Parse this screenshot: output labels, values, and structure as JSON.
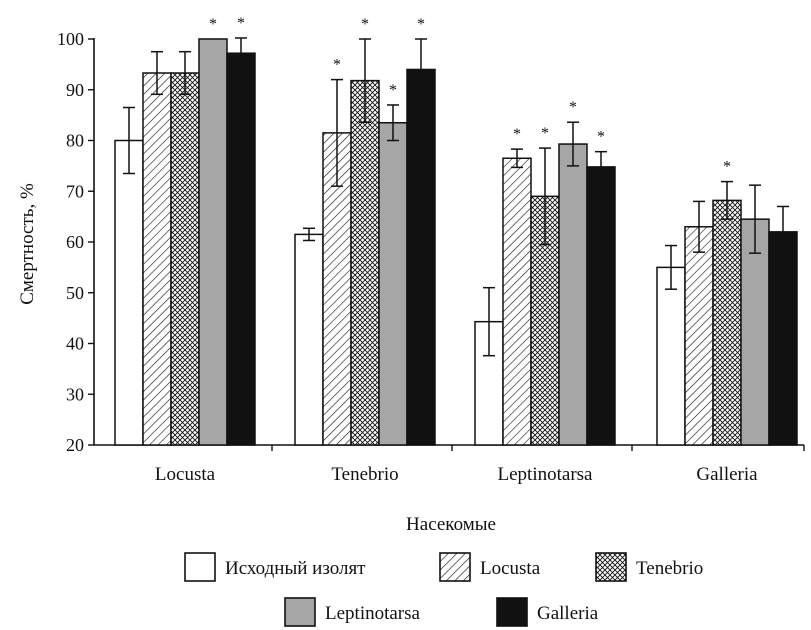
{
  "chart_data": {
    "type": "bar",
    "xlabel": "Насекомые",
    "ylabel": "Смертность, %",
    "ylim": [
      20,
      100
    ],
    "yticks": [
      "20",
      "30",
      "40",
      "50",
      "60",
      "70",
      "80",
      "90",
      "100"
    ],
    "categories": [
      "Locusta",
      "Tenebrio",
      "Leptinotarsa",
      "Galleria"
    ],
    "grid": false,
    "legend_position": "bottom",
    "significance_marker": "*",
    "series": [
      {
        "name": "Исходный изолят",
        "pattern": "white",
        "values": [
          80,
          61.5,
          44.3,
          55
        ],
        "errors": [
          6.5,
          1.2,
          6.7,
          4.3
        ],
        "significant": [
          false,
          false,
          false,
          false
        ]
      },
      {
        "name": "Locusta",
        "pattern": "hatch",
        "values": [
          93.3,
          81.5,
          76.5,
          63
        ],
        "errors": [
          4.2,
          10.5,
          1.8,
          5
        ],
        "significant": [
          false,
          true,
          true,
          false
        ]
      },
      {
        "name": "Tenebrio",
        "pattern": "crosshatch",
        "values": [
          93.3,
          91.8,
          69,
          68.2
        ],
        "errors": [
          4.2,
          8.2,
          9.5,
          3.7
        ],
        "significant": [
          false,
          true,
          true,
          true
        ]
      },
      {
        "name": "Leptinotarsa",
        "pattern": "gray",
        "values": [
          100,
          83.5,
          79.3,
          64.5
        ],
        "errors": [
          0,
          3.5,
          4.3,
          6.7
        ],
        "significant": [
          true,
          true,
          true,
          false
        ]
      },
      {
        "name": "Galleria",
        "pattern": "black",
        "values": [
          97.2,
          94,
          74.8,
          62
        ],
        "errors": [
          3,
          6,
          3,
          5
        ],
        "significant": [
          true,
          true,
          true,
          false
        ]
      }
    ]
  },
  "colors": {
    "gray": "#a6a6a6",
    "black": "#111111",
    "white": "#ffffff",
    "stroke": "#111111"
  }
}
